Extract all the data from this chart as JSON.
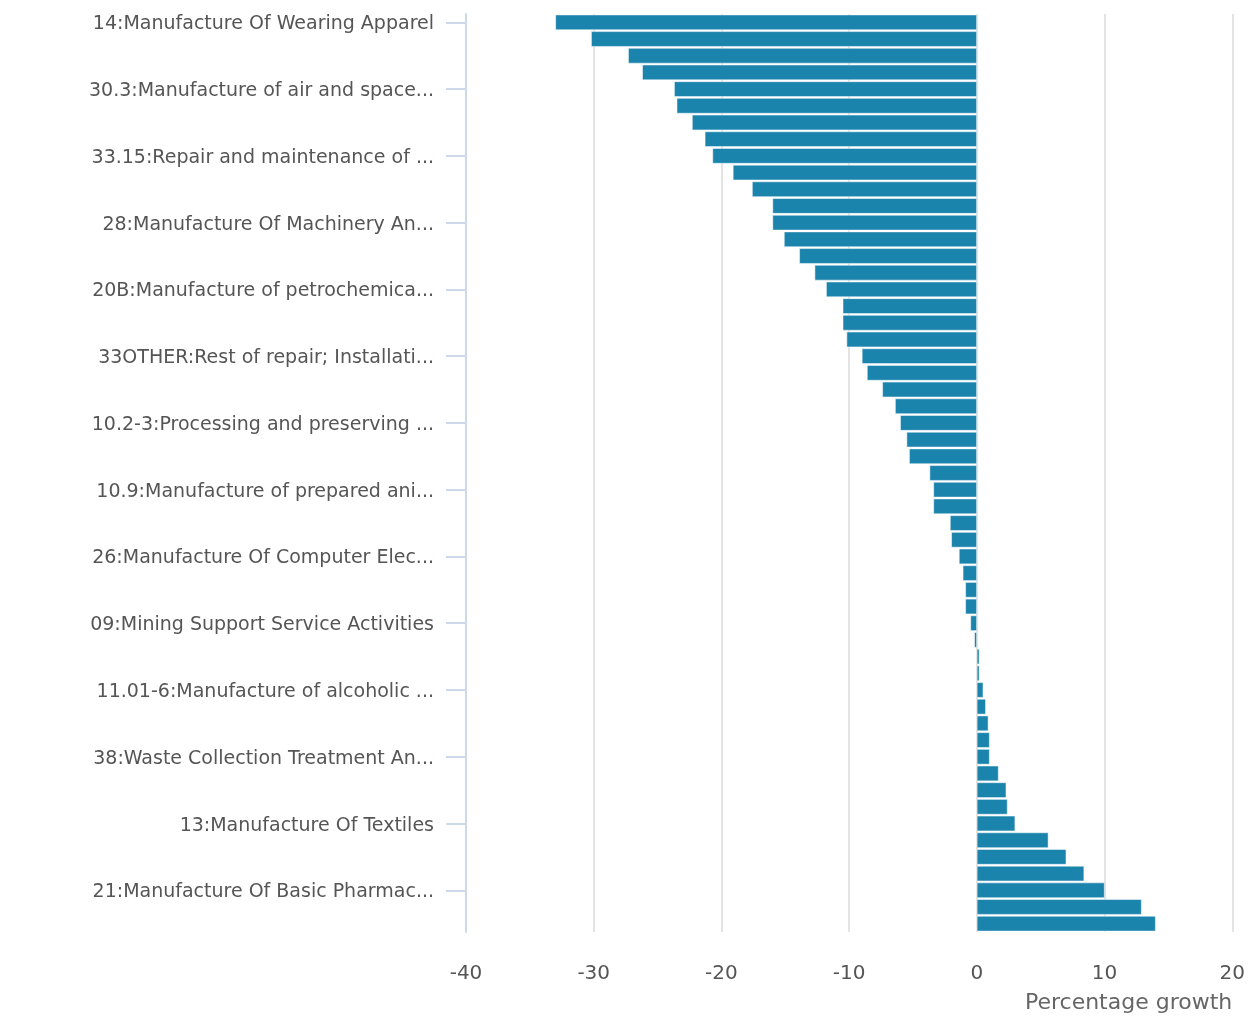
{
  "chart_data": {
    "type": "bar",
    "orientation": "horizontal",
    "xlabel": "Percentage growth",
    "categories": [
      "14:Manufacture Of Wearing Apparel",
      null,
      null,
      null,
      "30.3:Manufacture of air and space...",
      null,
      null,
      null,
      "33.15:Repair and maintenance of ...",
      null,
      null,
      null,
      "28:Manufacture Of Machinery An...",
      null,
      null,
      null,
      "20B:Manufacture of petrochemica...",
      null,
      null,
      null,
      "33OTHER:Rest of repair; Installati...",
      null,
      null,
      null,
      "10.2-3:Processing and preserving ...",
      null,
      null,
      null,
      "10.9:Manufacture of prepared ani...",
      null,
      null,
      null,
      "26:Manufacture Of Computer Elec...",
      null,
      null,
      null,
      "09:Mining Support Service Activities",
      null,
      null,
      null,
      "11.01-6:Manufacture of alcoholic ...",
      null,
      null,
      null,
      "38:Waste Collection Treatment An...",
      null,
      null,
      null,
      "13:Manufacture Of Textiles",
      null,
      null,
      null,
      "21:Manufacture Of Basic Pharmac...",
      null,
      null
    ],
    "values": [
      -33.0,
      -30.2,
      -27.3,
      -26.2,
      -23.7,
      -23.5,
      -22.3,
      -21.3,
      -20.7,
      -19.1,
      -17.6,
      -16.0,
      -16.0,
      -15.1,
      -13.9,
      -12.7,
      -11.8,
      -10.5,
      -10.5,
      -10.2,
      -9.0,
      -8.6,
      -7.4,
      -6.4,
      -6.0,
      -5.5,
      -5.3,
      -3.7,
      -3.4,
      -3.4,
      -2.1,
      -2.0,
      -1.4,
      -1.1,
      -0.9,
      -0.9,
      -0.5,
      -0.2,
      0.2,
      0.2,
      0.5,
      0.7,
      0.9,
      1.0,
      1.0,
      1.7,
      2.3,
      2.4,
      3.0,
      5.6,
      7.0,
      8.4,
      10.0,
      12.9,
      14.0
    ],
    "color": "#1b84ad",
    "xlim": [
      -40,
      20
    ],
    "xticks": [
      -40,
      -30,
      -20,
      -10,
      0,
      10,
      20
    ],
    "grid": "x"
  }
}
